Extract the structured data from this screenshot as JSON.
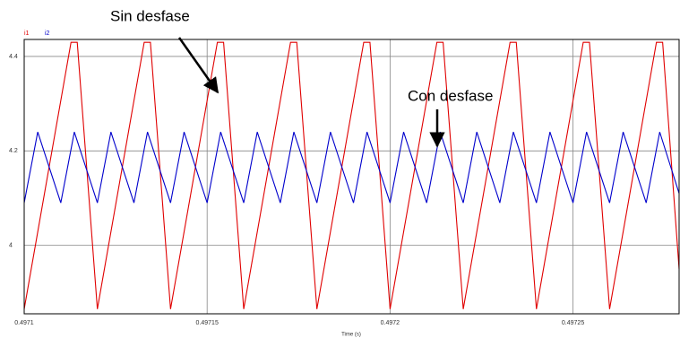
{
  "chart_data": {
    "type": "line",
    "xlabel": "Time (s)",
    "annotations": [
      {
        "text": "Sin desfase"
      },
      {
        "text": "Con desfase"
      }
    ],
    "xlim": [
      0.4971,
      0.497279
    ],
    "xticks": [
      0.4971,
      0.49715,
      0.4972,
      0.49725
    ],
    "ylim": [
      3.855,
      4.436
    ],
    "yticks": [
      4,
      4.2,
      4.4
    ],
    "grid": true,
    "legend": "top-left",
    "series": [
      {
        "name": "i1",
        "color": "#e00000",
        "x": [
          0.4971,
          0.4971128,
          0.4971145,
          0.49712,
          0.4971328,
          0.4971345,
          0.49714,
          0.4971528,
          0.4971545,
          0.49716,
          0.4971728,
          0.4971745,
          0.49718,
          0.4971928,
          0.4971945,
          0.4972,
          0.4972128,
          0.4972145,
          0.49722,
          0.4972328,
          0.4972345,
          0.49724,
          0.4972528,
          0.4972545,
          0.49726,
          0.4972728,
          0.4972745,
          0.497279
        ],
        "values": [
          3.865,
          4.43,
          4.43,
          3.865,
          4.43,
          4.43,
          3.865,
          4.43,
          4.43,
          3.865,
          4.43,
          4.43,
          3.865,
          4.43,
          4.43,
          3.865,
          4.43,
          4.43,
          3.865,
          4.43,
          4.43,
          3.865,
          4.43,
          4.43,
          3.865,
          4.43,
          4.43,
          3.95
        ]
      },
      {
        "name": "i2",
        "color": "#0000cc",
        "x": [
          0.4971,
          0.4971037,
          0.49711,
          0.4971137,
          0.49712,
          0.4971237,
          0.49713,
          0.4971337,
          0.49714,
          0.4971437,
          0.49715,
          0.4971537,
          0.49716,
          0.4971637,
          0.49717,
          0.4971737,
          0.49718,
          0.4971837,
          0.49719,
          0.4971937,
          0.4972,
          0.4972037,
          0.49721,
          0.4972137,
          0.49722,
          0.4972237,
          0.49723,
          0.4972337,
          0.49724,
          0.4972437,
          0.49725,
          0.4972537,
          0.49726,
          0.4972637,
          0.49727,
          0.4972737,
          0.497279
        ],
        "values": [
          4.09,
          4.24,
          4.09,
          4.24,
          4.09,
          4.24,
          4.09,
          4.24,
          4.09,
          4.24,
          4.09,
          4.24,
          4.09,
          4.24,
          4.09,
          4.24,
          4.09,
          4.24,
          4.09,
          4.24,
          4.09,
          4.24,
          4.09,
          4.24,
          4.09,
          4.24,
          4.09,
          4.24,
          4.09,
          4.24,
          4.09,
          4.24,
          4.09,
          4.24,
          4.09,
          4.24,
          4.11
        ]
      }
    ]
  }
}
